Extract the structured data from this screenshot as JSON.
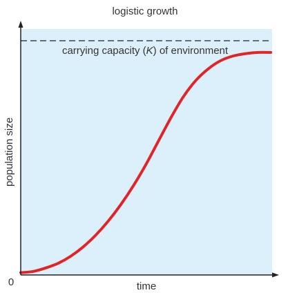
{
  "chart_data": {
    "type": "line",
    "title": "logistic growth",
    "xlabel": "time",
    "ylabel": "population size",
    "origin_label": "0",
    "xlim": [
      0,
      1
    ],
    "ylim": [
      0,
      1.05
    ],
    "grid": false,
    "annotation": {
      "prefix": "carrying capacity (",
      "italic": "K",
      "suffix": ") of environment",
      "y": 1.0
    },
    "series": [
      {
        "x": [
          0.0,
          0.05,
          0.1,
          0.15,
          0.2,
          0.25,
          0.3,
          0.35,
          0.4,
          0.45,
          0.5,
          0.55,
          0.6,
          0.65,
          0.7,
          0.75,
          0.8,
          0.85,
          0.9,
          0.95,
          1.0
        ],
        "values": [
          0.01,
          0.015,
          0.03,
          0.05,
          0.08,
          0.12,
          0.17,
          0.23,
          0.3,
          0.38,
          0.47,
          0.57,
          0.67,
          0.76,
          0.83,
          0.88,
          0.915,
          0.935,
          0.945,
          0.95,
          0.95
        ]
      }
    ],
    "colors": {
      "plot_background": "#dcf0fb",
      "curve": "#e02428",
      "axes": "#222222",
      "capacity_line": "#333333",
      "text": "#333333"
    }
  }
}
